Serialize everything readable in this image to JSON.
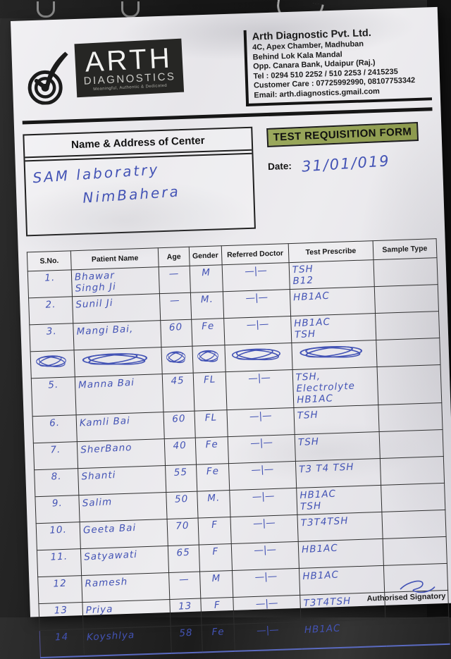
{
  "header": {
    "logo": {
      "name": "ARTH",
      "sub": "DIAGNOSTICS",
      "tagline": "Meaningful, Authentic & Dedicated"
    },
    "company": {
      "name": "Arth Diagnostic Pvt. Ltd.",
      "lines": [
        "4C, Apex Chamber, Madhuban",
        "Behind Lok Kala Mandal",
        "Opp. Canara Bank, Udaipur (Raj.)",
        "Tel : 0294 510 2252 / 510 2253 / 2415235",
        "Customer Care : 07725992990, 08107753342",
        "Email: arth.diagnostics.gmail.com"
      ]
    }
  },
  "center_box": {
    "title": "Name & Address of Center",
    "handwritten_line1": "SAM laboratry",
    "handwritten_line2": "NimBahera"
  },
  "form": {
    "title": "TEST REQUISITION FORM",
    "date_label": "Date:",
    "date_value": "31/01/019"
  },
  "table": {
    "headers": [
      "S.No.",
      "Patient Name",
      "Age",
      "Gender",
      "Referred Doctor",
      "Test Prescribe",
      "Sample Type"
    ],
    "column_keys": [
      "sno",
      "patient-name",
      "age",
      "gender",
      "referred-doctor",
      "test-prescribe",
      "sample-type"
    ],
    "rows": [
      {
        "scribbled": false,
        "cells": [
          "1.",
          "Bhawar\nSingh Ji",
          "—",
          "M",
          "—|—",
          "TSH\nB12",
          ""
        ]
      },
      {
        "scribbled": false,
        "cells": [
          "2.",
          "Sunil Ji",
          "—",
          "M.",
          "—|—",
          "HB1AC",
          ""
        ]
      },
      {
        "scribbled": false,
        "cells": [
          "3.",
          "Mangi Bai,",
          "60",
          "Fe",
          "—|—",
          "HB1AC\nTSH",
          ""
        ]
      },
      {
        "scribbled": true,
        "cells": [
          "",
          "",
          "",
          "",
          "",
          "",
          ""
        ]
      },
      {
        "scribbled": false,
        "cells": [
          "5.",
          "Manna Bai",
          "45",
          "FL",
          "—|—",
          "TSH, Electrolyte\nHB1AC",
          ""
        ]
      },
      {
        "scribbled": false,
        "cells": [
          "6.",
          "Kamli Bai",
          "60",
          "FL",
          "—|—",
          "TSH",
          ""
        ]
      },
      {
        "scribbled": false,
        "cells": [
          "7.",
          "SherBano",
          "40",
          "Fe",
          "—|—",
          "TSH",
          ""
        ]
      },
      {
        "scribbled": false,
        "cells": [
          "8.",
          "Shanti",
          "55",
          "Fe",
          "—|—",
          "T3 T4 TSH",
          ""
        ]
      },
      {
        "scribbled": false,
        "cells": [
          "9.",
          "Salim",
          "50",
          "M.",
          "—|—",
          "HB1AC\nTSH",
          ""
        ]
      },
      {
        "scribbled": false,
        "cells": [
          "10.",
          "Geeta Bai",
          "70",
          "F",
          "—|—",
          "T3T4TSH",
          ""
        ]
      },
      {
        "scribbled": false,
        "cells": [
          "11.",
          "Satyawati",
          "65",
          "F",
          "—|—",
          "HB1AC",
          ""
        ]
      },
      {
        "scribbled": false,
        "cells": [
          "12",
          "Ramesh",
          "—",
          "M",
          "—|—",
          "HB1AC",
          ""
        ]
      },
      {
        "scribbled": false,
        "cells": [
          "13",
          "Priya",
          "13",
          "F",
          "—|—",
          "T3T4TSH",
          ""
        ]
      },
      {
        "scribbled": false,
        "cells": [
          "14",
          "Koyshlya",
          "58",
          "Fe",
          "—|—",
          "HB1AC",
          ""
        ]
      }
    ]
  },
  "footer": {
    "signatory": "Authorised Signatory"
  },
  "colors": {
    "highlight_green": "#97a353",
    "ink_blue": "#4353b5",
    "paper": "#e9e8ec",
    "logo_box": "#262624"
  }
}
